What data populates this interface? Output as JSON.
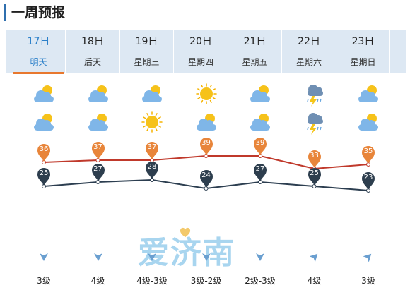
{
  "header": {
    "title": "一周预报"
  },
  "days": [
    {
      "date": "17日",
      "week": "明天",
      "active": true,
      "icon_day": "partly-cloudy-icon",
      "icon_night": "partly-cloudy-icon",
      "high": "36",
      "low": "25",
      "wind": "3级",
      "wind_dir": "down"
    },
    {
      "date": "18日",
      "week": "后天",
      "active": false,
      "icon_day": "partly-cloudy-icon",
      "icon_night": "partly-cloudy-icon",
      "high": "37",
      "low": "27",
      "wind": "4级",
      "wind_dir": "down"
    },
    {
      "date": "19日",
      "week": "星期三",
      "active": false,
      "icon_day": "partly-cloudy-icon",
      "icon_night": "sunny-icon",
      "high": "37",
      "low": "28",
      "wind": "4级-3级",
      "wind_dir": "down"
    },
    {
      "date": "20日",
      "week": "星期四",
      "active": false,
      "icon_day": "sunny-icon",
      "icon_night": "partly-cloudy-icon",
      "high": "39",
      "low": "24",
      "wind": "3级-2级",
      "wind_dir": "down"
    },
    {
      "date": "21日",
      "week": "星期五",
      "active": false,
      "icon_day": "partly-cloudy-icon",
      "icon_night": "partly-cloudy-icon",
      "high": "39",
      "low": "27",
      "wind": "2级-3级",
      "wind_dir": "down"
    },
    {
      "date": "22日",
      "week": "星期六",
      "active": false,
      "icon_day": "thunderstorm-icon",
      "icon_night": "thunderstorm-icon",
      "high": "33",
      "low": "25",
      "wind": "4级",
      "wind_dir": "up-right"
    },
    {
      "date": "23日",
      "week": "星期日",
      "active": false,
      "icon_day": "partly-cloudy-icon",
      "icon_night": "partly-cloudy-icon",
      "high": "35",
      "low": "23",
      "wind": "3级",
      "wind_dir": "up-right"
    }
  ],
  "watermark": "爱济南",
  "colors": {
    "high_line": "#c0392b",
    "high_pin": "#e8853a",
    "low_line": "#2c3e50",
    "low_pin": "#2d3e4e",
    "active": "#2c80c9",
    "tab_bg": "#dde8f3"
  }
}
